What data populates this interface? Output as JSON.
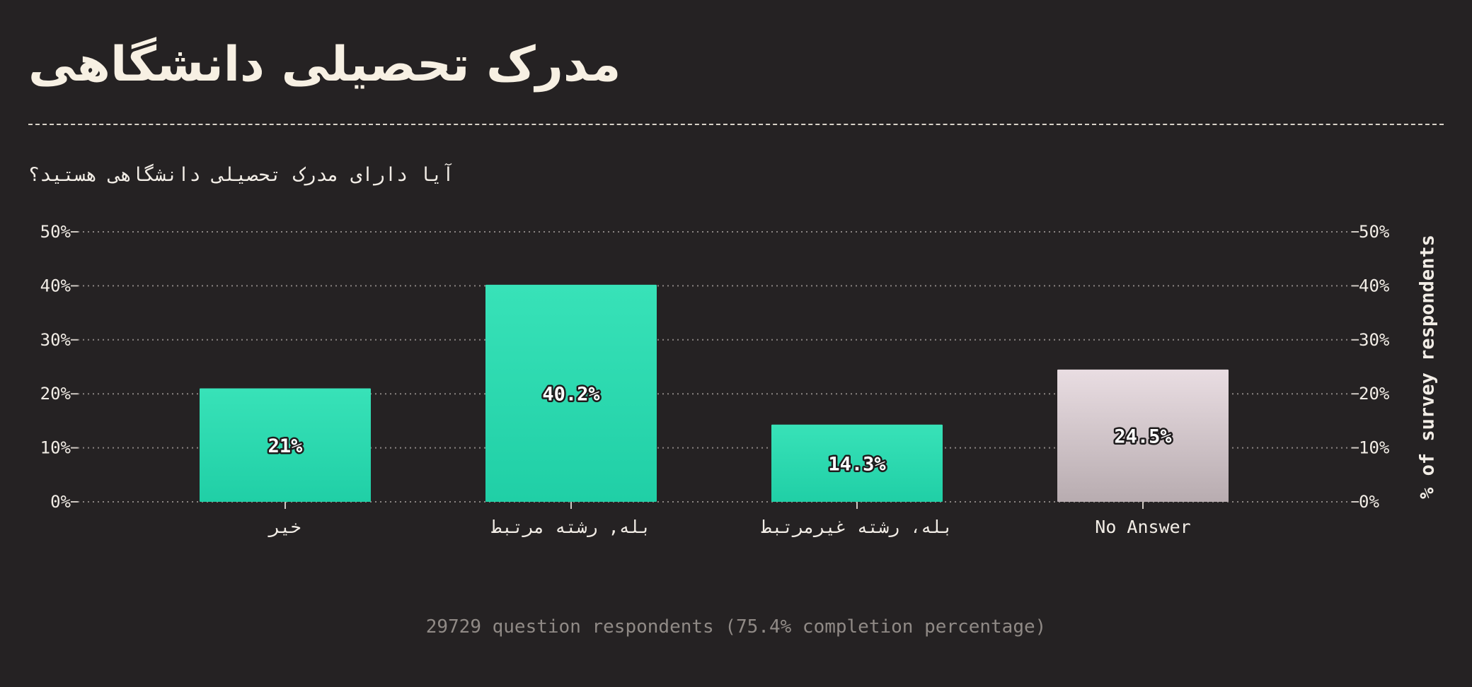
{
  "title": "مدرک تحصیلی دانشگاهی",
  "subtitle": "آیا دارای مدرک تحصیلی دانشگاهی هستید؟",
  "footer": "29729 question respondents (75.4% completion percentage)",
  "colors": {
    "background": "#252223",
    "bar_primary_top": "#38e2b8",
    "bar_primary_bottom": "#20cfa6",
    "bar_no_answer_top": "#e9dde2",
    "bar_no_answer_bottom": "#b8acb0",
    "grid": "#8a8482"
  },
  "chart_data": {
    "type": "bar",
    "categories": [
      "خیر",
      "بله, رشته مرتبط",
      "بله، رشته غیرمرتبط",
      "No Answer"
    ],
    "values": [
      21,
      40.2,
      14.3,
      24.5
    ],
    "value_labels": [
      "21%",
      "40.2%",
      "14.3%",
      "24.5%"
    ],
    "ylabel": "% of survey respondents",
    "ylim": [
      0,
      50
    ],
    "yticks": [
      "0%",
      "10%",
      "20%",
      "30%",
      "40%",
      "50%"
    ],
    "grid": true,
    "bar_style": [
      "primary",
      "primary",
      "primary",
      "no_answer"
    ]
  }
}
